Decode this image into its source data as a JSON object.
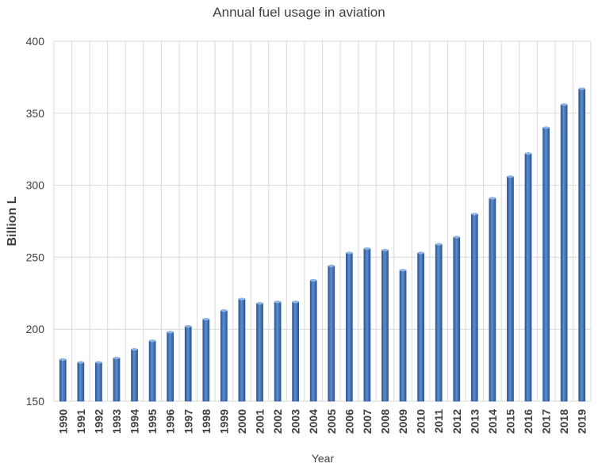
{
  "chart_data": {
    "type": "bar",
    "title": "Annual fuel usage in aviation",
    "xlabel": "Year",
    "ylabel": "Billion L",
    "ylim": [
      150,
      400
    ],
    "yticks": [
      "150",
      "200",
      "250",
      "300",
      "350",
      "400"
    ],
    "grid": true,
    "categories": [
      "1990",
      "1991",
      "1992",
      "1993",
      "1994",
      "1995",
      "1996",
      "1997",
      "1998",
      "1999",
      "2000",
      "2001",
      "2002",
      "2003",
      "2004",
      "2005",
      "2006",
      "2007",
      "2008",
      "2009",
      "2010",
      "2011",
      "2012",
      "2013",
      "2014",
      "2015",
      "2016",
      "2017",
      "2018",
      "2019"
    ],
    "values": [
      179,
      177,
      177,
      180,
      186,
      192,
      198,
      202,
      207,
      213,
      221,
      218,
      219,
      219,
      234,
      244,
      253,
      256,
      255,
      241,
      253,
      259,
      264,
      280,
      291,
      306,
      322,
      340,
      356,
      367
    ],
    "colors": {
      "bar": "#3e6fb0",
      "bar_dark": "#2c5594",
      "grid": "#d9d9d9",
      "text": "#404040"
    }
  }
}
